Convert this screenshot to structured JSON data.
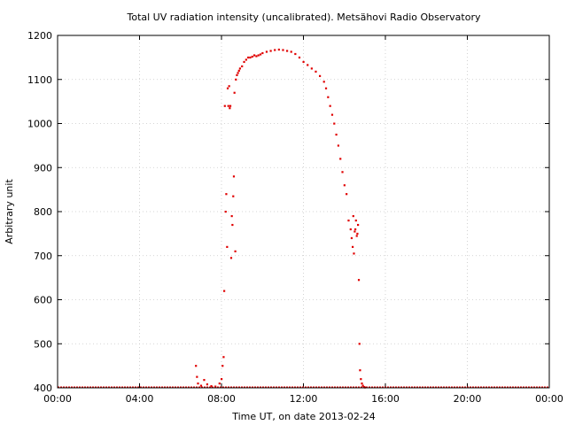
{
  "chart_data": {
    "type": "scatter",
    "title": "Total UV radiation intensity (uncalibrated). Metsähovi Radio Observatory",
    "xlabel": "Time UT, on date 2013-02-24",
    "ylabel": "Arbitrary unit",
    "xlim": [
      0,
      24
    ],
    "ylim": [
      400,
      1200
    ],
    "x_ticks": [
      0,
      4,
      8,
      12,
      16,
      20,
      24
    ],
    "x_tick_labels": [
      "00:00",
      "04:00",
      "08:00",
      "12:00",
      "16:00",
      "20:00",
      "00:00"
    ],
    "y_ticks": [
      400,
      500,
      600,
      700,
      800,
      900,
      1000,
      1100,
      1200
    ],
    "y_tick_labels": [
      "400",
      "500",
      "600",
      "700",
      "800",
      "900",
      "1000",
      "1100",
      "1200"
    ],
    "grid": true,
    "series": [
      {
        "color": "#e00000",
        "x": [
          6.75,
          6.8,
          6.85,
          7.0,
          7.15,
          7.3,
          7.5,
          7.7,
          7.9,
          8.0,
          8.05,
          8.1,
          8.13,
          8.16,
          8.2,
          8.23,
          8.27,
          8.3,
          8.33,
          8.37,
          8.4,
          8.43,
          8.47,
          8.5,
          8.53,
          8.57,
          8.6,
          8.63,
          8.67,
          8.7,
          8.75,
          8.8,
          8.85,
          8.9,
          9.0,
          9.1,
          9.2,
          9.3,
          9.4,
          9.5,
          9.6,
          9.7,
          9.8,
          9.9,
          10.0,
          10.2,
          10.4,
          10.6,
          10.8,
          11.0,
          11.2,
          11.4,
          11.6,
          11.8,
          12.0,
          12.2,
          12.4,
          12.6,
          12.8,
          13.0,
          13.1,
          13.2,
          13.3,
          13.4,
          13.5,
          13.6,
          13.7,
          13.8,
          13.9,
          14.0,
          14.1,
          14.2,
          14.3,
          14.35,
          14.4,
          14.43,
          14.46,
          14.5,
          14.53,
          14.56,
          14.6,
          14.63,
          14.66,
          14.7,
          14.73,
          14.76,
          14.8,
          14.85,
          14.9,
          14.95,
          15.0
        ],
        "y": [
          450,
          425,
          410,
          405,
          418,
          408,
          404,
          403,
          410,
          420,
          450,
          470,
          620,
          1040,
          800,
          840,
          720,
          1080,
          1040,
          1085,
          1035,
          1040,
          695,
          790,
          770,
          835,
          880,
          1070,
          710,
          1100,
          1110,
          1115,
          1120,
          1125,
          1130,
          1140,
          1145,
          1150,
          1150,
          1152,
          1155,
          1153,
          1155,
          1157,
          1160,
          1163,
          1165,
          1167,
          1168,
          1167,
          1165,
          1163,
          1158,
          1150,
          1140,
          1133,
          1125,
          1118,
          1108,
          1095,
          1080,
          1060,
          1040,
          1020,
          1000,
          975,
          950,
          920,
          890,
          860,
          840,
          780,
          760,
          740,
          720,
          790,
          705,
          755,
          760,
          780,
          745,
          750,
          770,
          645,
          500,
          440,
          420,
          410,
          405,
          402,
          401
        ]
      }
    ]
  }
}
